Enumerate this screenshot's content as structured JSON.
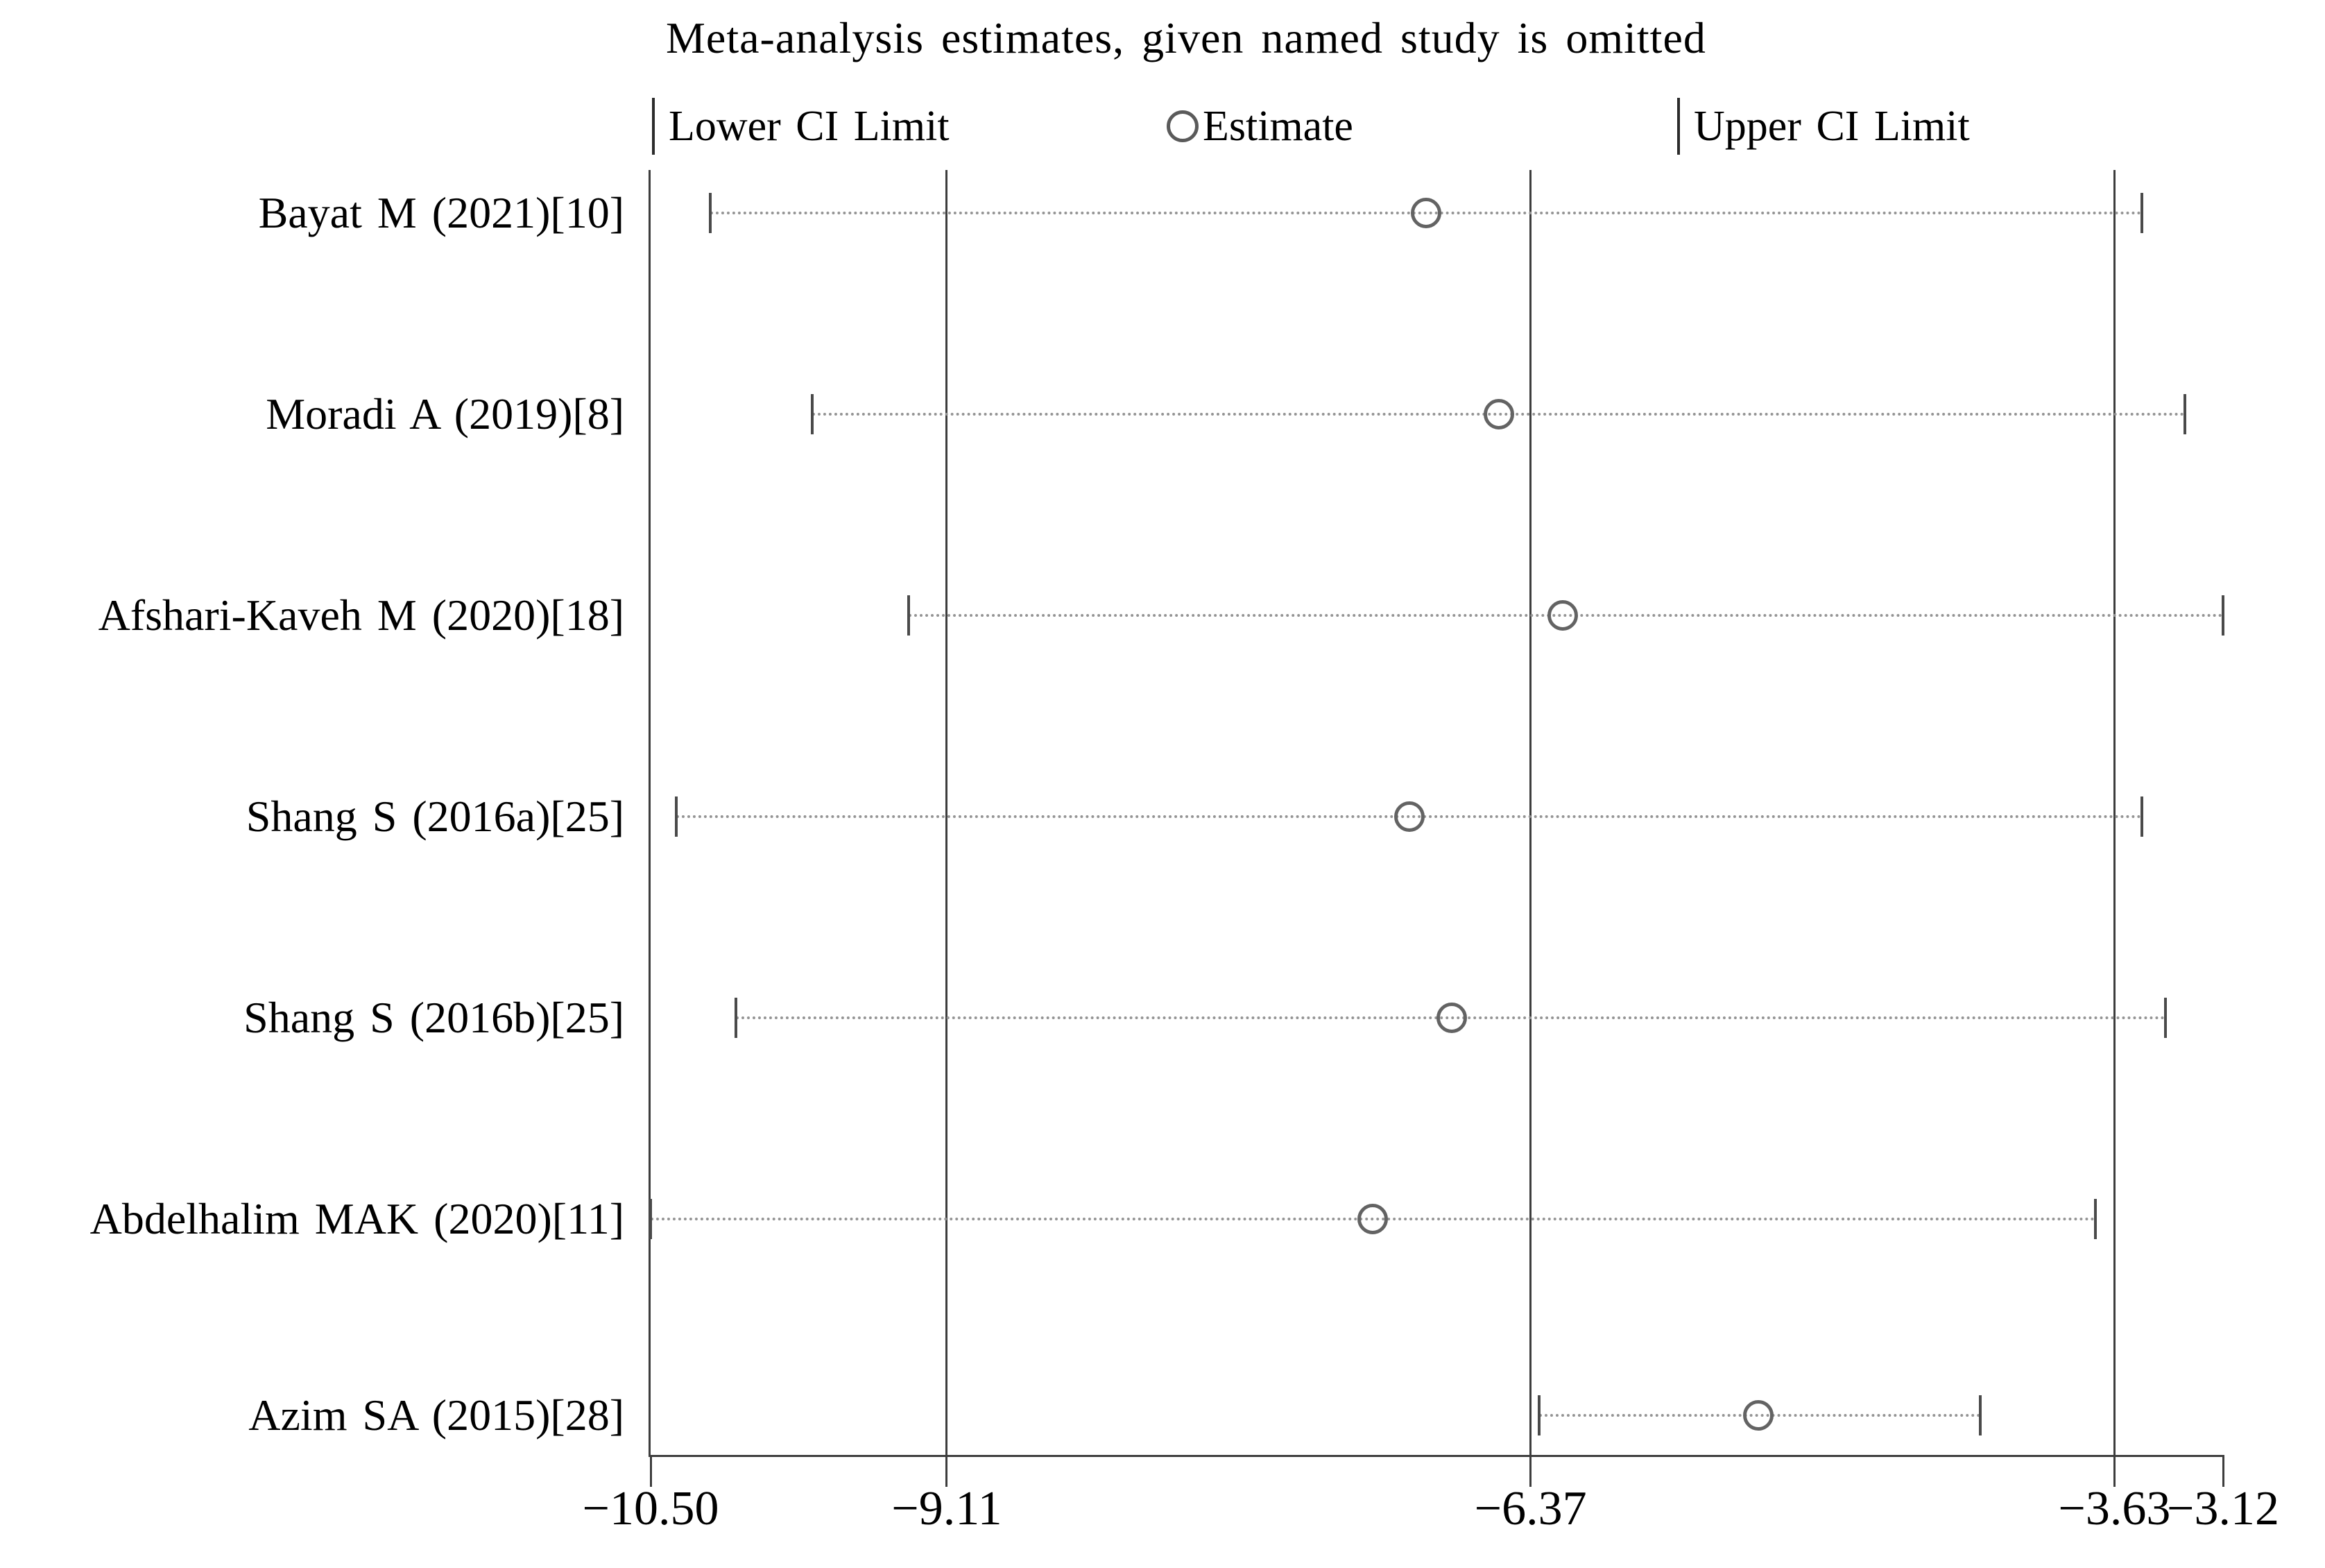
{
  "figure_title": "Meta-analysis estimates, given named study is omitted",
  "legend": {
    "lower_label": "Lower CI Limit",
    "estimate_label": "Estimate",
    "upper_label": "Upper CI Limit"
  },
  "chart_data": {
    "type": "scatter",
    "subtype": "leave-one-out-sensitivity-forest",
    "title": "Meta-analysis estimates, given named study is omitted",
    "legend_entries": [
      "Lower CI Limit",
      "Estimate",
      "Upper CI Limit"
    ],
    "legend_position": "top",
    "grid": "vertical-reference-lines",
    "x_axis": {
      "range": [
        -10.5,
        -3.12
      ],
      "ticks": [
        -10.5,
        -9.11,
        -6.37,
        -3.63,
        -3.12
      ],
      "tick_labels": [
        "−10.50",
        "−9.11",
        "−6.37",
        "−3.63",
        "−3.12"
      ],
      "gridline_values": [
        -9.11,
        -6.37,
        -3.63
      ]
    },
    "studies": [
      {
        "label": "Bayat M (2021)[10]",
        "lower": -10.22,
        "estimate": -6.86,
        "upper": -3.5
      },
      {
        "label": "Moradi A (2019)[8]",
        "lower": -9.74,
        "estimate": -6.52,
        "upper": -3.3
      },
      {
        "label": "Afshari-Kaveh M (2020)[18]",
        "lower": -9.29,
        "estimate": -6.22,
        "upper": -3.12
      },
      {
        "label": "Shang S (2016a)[25]",
        "lower": -10.38,
        "estimate": -6.94,
        "upper": -3.5
      },
      {
        "label": "Shang S (2016b)[25]",
        "lower": -10.1,
        "estimate": -6.74,
        "upper": -3.39
      },
      {
        "label": "Abdelhalim MAK (2020)[11]",
        "lower": -10.5,
        "estimate": -7.11,
        "upper": -3.72
      },
      {
        "label": "Azim SA (2015)[28]",
        "lower": -6.33,
        "estimate": -5.3,
        "upper": -4.26
      }
    ],
    "colors": {
      "axis_line": "#3d3d3d",
      "ci_dotted_line": "#949494",
      "ci_tick": "#4a4a4a",
      "estimate_marker_stroke": "#636363",
      "text": "#000000"
    }
  }
}
